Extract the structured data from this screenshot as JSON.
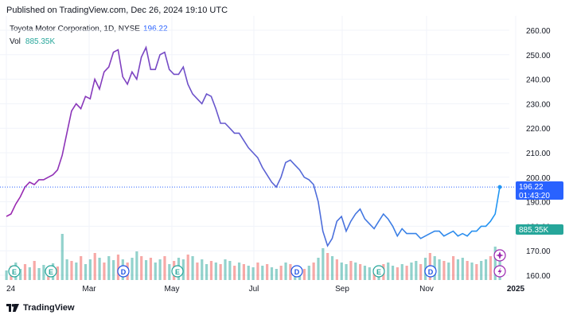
{
  "published": "Published on TradingView.com, Dec 26, 2024 19:10 UTC",
  "legend": {
    "symbol": "Toyota Motor Corporation, 1D, NYSE",
    "last": "196.22",
    "vol_label": "Vol",
    "vol_value": "885.35K"
  },
  "price_tag": {
    "price": "196.22",
    "countdown": "01:43:20"
  },
  "vol_tag": "885.35K",
  "brand": "TradingView",
  "colors": {
    "line_start": "#9c27b0",
    "line_end": "#2196f3",
    "vol_up": "#26a69a",
    "vol_down": "#ef5350",
    "accent": "#2962ff"
  },
  "chart_data": {
    "type": "line",
    "title": "Toyota Motor Corporation, 1D, NYSE",
    "x_ticks": [
      "24",
      "Mar",
      "May",
      "Jul",
      "Sep",
      "Nov",
      "2025"
    ],
    "y_ticks": [
      260.0,
      250.0,
      240.0,
      230.0,
      220.0,
      210.0,
      200.0,
      190.0,
      180.0,
      170.0,
      160.0
    ],
    "ylim": [
      158,
      264
    ],
    "grid": true,
    "series": [
      {
        "values": [
          184,
          185,
          189,
          192,
          196,
          198,
          197,
          199,
          199,
          200,
          201,
          203,
          209,
          218,
          227,
          230,
          228,
          233,
          232,
          240,
          236,
          243,
          245,
          251,
          252,
          241,
          238,
          243,
          240,
          249,
          253,
          244,
          244,
          250,
          251,
          244,
          242,
          242,
          245,
          238,
          234,
          232,
          230,
          234,
          233,
          228,
          222,
          222,
          220,
          218,
          218,
          215,
          212,
          210,
          208,
          204,
          201,
          198,
          196,
          200,
          206,
          207,
          205,
          203,
          200,
          199,
          197,
          190,
          178,
          172,
          175,
          182,
          184,
          178,
          182,
          185,
          187,
          183,
          181,
          179,
          182,
          185,
          183,
          180,
          176,
          179,
          177,
          177,
          177,
          175,
          176,
          177,
          178,
          178,
          176,
          177,
          178,
          176,
          177,
          176,
          178,
          178,
          180,
          180,
          182,
          185,
          196
        ]
      }
    ],
    "volume": {
      "values": [
        12,
        18,
        22,
        14,
        20,
        16,
        24,
        15,
        19,
        14,
        21,
        17,
        58,
        26,
        24,
        22,
        30,
        20,
        26,
        34,
        28,
        22,
        30,
        25,
        32,
        26,
        22,
        28,
        36,
        30,
        25,
        28,
        22,
        26,
        30,
        20,
        24,
        28,
        26,
        32,
        30,
        22,
        26,
        20,
        24,
        22,
        20,
        26,
        24,
        18,
        22,
        20,
        18,
        16,
        22,
        18,
        20,
        16,
        14,
        18,
        22,
        20,
        18,
        16,
        14,
        18,
        22,
        28,
        40,
        34,
        30,
        26,
        22,
        20,
        24,
        22,
        20,
        18,
        16,
        14,
        18,
        20,
        22,
        18,
        16,
        20,
        18,
        22,
        24,
        20,
        28,
        34,
        30,
        26,
        24,
        22,
        30,
        26,
        28,
        24,
        22,
        20,
        24,
        26,
        30,
        42,
        38
      ],
      "up": [
        true,
        false,
        true,
        true,
        false,
        true,
        false,
        true,
        true,
        false,
        true,
        false,
        true,
        true,
        false,
        true,
        false,
        true,
        true,
        false,
        true,
        false,
        true,
        true,
        false,
        true,
        false,
        true,
        true,
        false,
        true,
        false,
        true,
        true,
        false,
        true,
        false,
        true,
        true,
        false,
        true,
        false,
        true,
        true,
        false,
        true,
        false,
        true,
        true,
        false,
        true,
        false,
        true,
        true,
        false,
        true,
        false,
        true,
        true,
        false,
        true,
        false,
        true,
        true,
        false,
        true,
        false,
        true,
        true,
        false,
        true,
        false,
        true,
        true,
        false,
        true,
        false,
        true,
        true,
        false,
        true,
        false,
        true,
        true,
        false,
        true,
        false,
        true,
        true,
        false,
        true,
        false,
        true,
        true,
        false,
        true,
        false,
        true,
        true,
        false,
        true,
        false,
        true,
        true,
        false,
        true,
        true
      ]
    },
    "events": [
      "E",
      "E",
      "D",
      "E",
      "D",
      "E",
      "D"
    ],
    "events_labels": [
      "Earnings",
      "Earnings",
      "Dividend",
      "Earnings",
      "Dividend",
      "Earnings",
      "Dividend"
    ]
  }
}
